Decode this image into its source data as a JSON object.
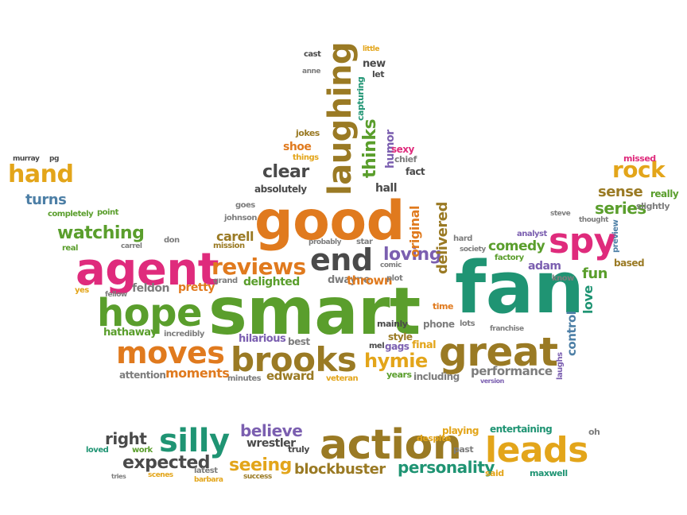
{
  "palette": {
    "green": "#5a9e2c",
    "orange": "#e07a1e",
    "pink": "#df2b7c",
    "teal": "#1f9473",
    "blue": "#4d7fa6",
    "purple": "#7b5fb0",
    "brown": "#9a7a24",
    "gold": "#e3a51a",
    "grey": "#7d7d7d",
    "dark": "#4a4a4a"
  },
  "words": [
    {
      "text": "smart",
      "color": "green"
    },
    {
      "text": "fan",
      "color": "teal"
    },
    {
      "text": "good",
      "color": "orange"
    },
    {
      "text": "agent",
      "color": "pink"
    },
    {
      "text": "great",
      "color": "brown"
    },
    {
      "text": "hope",
      "color": "green"
    },
    {
      "text": "brooks",
      "color": "brown"
    },
    {
      "text": "action",
      "color": "brown"
    },
    {
      "text": "leads",
      "color": "gold"
    },
    {
      "text": "moves",
      "color": "orange"
    },
    {
      "text": "spy",
      "color": "pink"
    },
    {
      "text": "silly",
      "color": "teal"
    },
    {
      "text": "reviews",
      "color": "orange"
    },
    {
      "text": "end",
      "color": "dark"
    },
    {
      "text": "laughing",
      "color": "brown"
    },
    {
      "text": "hand",
      "color": "gold"
    },
    {
      "text": "rock",
      "color": "gold"
    },
    {
      "text": "watching",
      "color": "green"
    },
    {
      "text": "thinks",
      "color": "green"
    },
    {
      "text": "clear",
      "color": "dark"
    },
    {
      "text": "loving",
      "color": "purple"
    },
    {
      "text": "hymie",
      "color": "gold"
    },
    {
      "text": "series",
      "color": "green"
    },
    {
      "text": "sense",
      "color": "brown"
    },
    {
      "text": "turns",
      "color": "blue"
    },
    {
      "text": "believe",
      "color": "purple"
    },
    {
      "text": "expected",
      "color": "dark"
    },
    {
      "text": "seeing",
      "color": "gold"
    },
    {
      "text": "personality",
      "color": "teal"
    },
    {
      "text": "blockbuster",
      "color": "brown"
    },
    {
      "text": "performance",
      "color": "grey"
    },
    {
      "text": "comedy",
      "color": "green"
    },
    {
      "text": "right",
      "color": "dark"
    },
    {
      "text": "delivered",
      "color": "brown"
    },
    {
      "text": "original",
      "color": "orange"
    },
    {
      "text": "fun",
      "color": "green"
    },
    {
      "text": "love",
      "color": "teal"
    },
    {
      "text": "control",
      "color": "blue"
    },
    {
      "text": "moments",
      "color": "orange"
    },
    {
      "text": "edward",
      "color": "brown"
    },
    {
      "text": "carell",
      "color": "brown"
    },
    {
      "text": "delighted",
      "color": "green"
    },
    {
      "text": "dwayne",
      "color": "grey"
    },
    {
      "text": "thrown",
      "color": "orange"
    },
    {
      "text": "humor",
      "color": "purple"
    },
    {
      "text": "pretty",
      "color": "orange"
    },
    {
      "text": "hathaway",
      "color": "green"
    },
    {
      "text": "feldon",
      "color": "grey"
    },
    {
      "text": "mission",
      "color": "brown"
    },
    {
      "text": "adam",
      "color": "purple"
    },
    {
      "text": "entertaining",
      "color": "teal"
    },
    {
      "text": "playing",
      "color": "gold"
    },
    {
      "text": "wrestler",
      "color": "dark"
    },
    {
      "text": "maxwell",
      "color": "teal"
    },
    {
      "text": "really",
      "color": "green"
    },
    {
      "text": "slightly",
      "color": "grey"
    },
    {
      "text": "missed",
      "color": "pink"
    },
    {
      "text": "shoe",
      "color": "orange"
    },
    {
      "text": "things",
      "color": "gold"
    },
    {
      "text": "hall",
      "color": "dark"
    },
    {
      "text": "absolutely",
      "color": "dark"
    },
    {
      "text": "jokes",
      "color": "brown"
    },
    {
      "text": "goes",
      "color": "grey"
    },
    {
      "text": "sexy",
      "color": "pink"
    },
    {
      "text": "chief",
      "color": "grey"
    },
    {
      "text": "fact",
      "color": "dark"
    },
    {
      "text": "capturing",
      "color": "teal"
    },
    {
      "text": "new",
      "color": "dark"
    },
    {
      "text": "let",
      "color": "dark"
    },
    {
      "text": "cast",
      "color": "dark"
    },
    {
      "text": "little",
      "color": "gold"
    },
    {
      "text": "anne",
      "color": "grey"
    },
    {
      "text": "murray",
      "color": "dark"
    },
    {
      "text": "pg",
      "color": "dark"
    },
    {
      "text": "completely",
      "color": "green"
    },
    {
      "text": "point",
      "color": "green"
    },
    {
      "text": "real",
      "color": "green"
    },
    {
      "text": "fellow",
      "color": "grey"
    },
    {
      "text": "yes",
      "color": "gold"
    },
    {
      "text": "carrel",
      "color": "grey"
    },
    {
      "text": "don",
      "color": "grey"
    },
    {
      "text": "incredibly",
      "color": "grey"
    },
    {
      "text": "grand",
      "color": "grey"
    },
    {
      "text": "johnson",
      "color": "grey"
    },
    {
      "text": "probably",
      "color": "grey"
    },
    {
      "text": "star",
      "color": "grey"
    },
    {
      "text": "hard",
      "color": "grey"
    },
    {
      "text": "society",
      "color": "grey"
    },
    {
      "text": "factory",
      "color": "green"
    },
    {
      "text": "analyst",
      "color": "purple"
    },
    {
      "text": "thought",
      "color": "grey"
    },
    {
      "text": "steve",
      "color": "grey"
    },
    {
      "text": "based",
      "color": "brown"
    },
    {
      "text": "know",
      "color": "grey"
    },
    {
      "text": "preview",
      "color": "blue"
    },
    {
      "text": "laughs",
      "color": "purple"
    },
    {
      "text": "comic",
      "color": "grey"
    },
    {
      "text": "plot",
      "color": "grey"
    },
    {
      "text": "hilarious",
      "color": "purple"
    },
    {
      "text": "best",
      "color": "grey"
    },
    {
      "text": "mel",
      "color": "dark"
    },
    {
      "text": "gags",
      "color": "purple"
    },
    {
      "text": "style",
      "color": "brown"
    },
    {
      "text": "final",
      "color": "gold"
    },
    {
      "text": "phone",
      "color": "grey"
    },
    {
      "text": "lots",
      "color": "grey"
    },
    {
      "text": "mainly",
      "color": "dark"
    },
    {
      "text": "time",
      "color": "orange"
    },
    {
      "text": "years",
      "color": "green"
    },
    {
      "text": "including",
      "color": "grey"
    },
    {
      "text": "attention",
      "color": "grey"
    },
    {
      "text": "minutes",
      "color": "grey"
    },
    {
      "text": "veteran",
      "color": "gold"
    },
    {
      "text": "loved",
      "color": "teal"
    },
    {
      "text": "work",
      "color": "green"
    },
    {
      "text": "despite",
      "color": "gold"
    },
    {
      "text": "past",
      "color": "grey"
    },
    {
      "text": "said",
      "color": "gold"
    },
    {
      "text": "oh",
      "color": "grey"
    },
    {
      "text": "truly",
      "color": "dark"
    },
    {
      "text": "scenes",
      "color": "gold"
    },
    {
      "text": "latest",
      "color": "grey"
    },
    {
      "text": "barbara",
      "color": "gold"
    },
    {
      "text": "success",
      "color": "brown"
    },
    {
      "text": "tries",
      "color": "grey"
    },
    {
      "text": "version",
      "color": "purple"
    },
    {
      "text": "franchise",
      "color": "grey"
    }
  ]
}
